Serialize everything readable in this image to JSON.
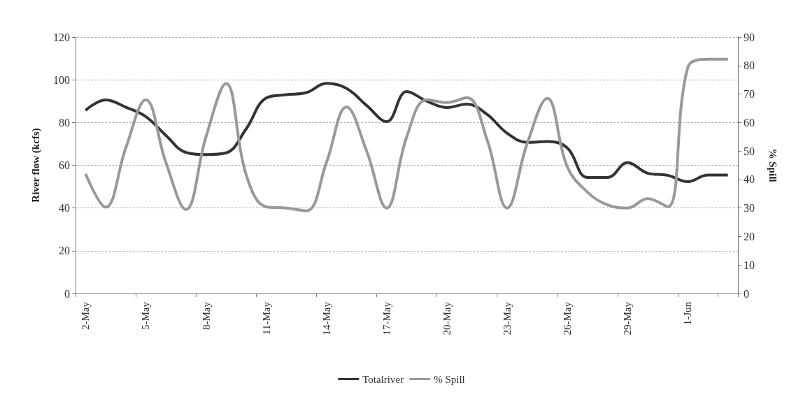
{
  "chart_data": {
    "type": "line",
    "ylabel": "River flow (kcfs)",
    "y2label": "% Spill",
    "categories": [
      "2-May",
      null,
      null,
      "5-May",
      null,
      null,
      "8-May",
      null,
      null,
      "11-May",
      null,
      null,
      "14-May",
      null,
      null,
      "17-May",
      null,
      null,
      "20-May",
      null,
      null,
      "23-May",
      null,
      null,
      "26-May",
      null,
      null,
      "29-May",
      null,
      null,
      "1-Jun",
      null,
      null
    ],
    "series": [
      {
        "name": "Totalriver",
        "color": "#333333",
        "values": [
          85.7,
          90.6,
          87.2,
          82.8,
          74,
          66,
          65,
          65.8,
          77,
          91.5,
          93,
          94,
          98.3,
          96,
          88,
          80.4,
          94.5,
          90,
          87,
          88.6,
          83.8,
          75,
          70.7,
          71.1,
          68.1,
          54.3,
          54.3,
          61.2,
          56.3,
          55.3,
          52.3,
          55.4,
          55.4
        ]
      },
      {
        "name": "% Spill",
        "color": "#999999",
        "axis": "y2",
        "values": [
          42,
          30.3,
          51,
          68,
          46,
          29.5,
          55,
          73.7,
          41.7,
          30.4,
          30,
          29,
          46,
          65.5,
          50,
          30,
          55,
          68,
          67,
          68.7,
          54,
          30,
          52.6,
          68.5,
          44.4,
          35.6,
          31.1,
          30,
          33.3,
          30.4,
          79.3,
          82.2,
          82.2
        ]
      }
    ],
    "ylim": [
      0,
      120
    ],
    "yticks": [
      0,
      20,
      40,
      60,
      80,
      100,
      120
    ],
    "y2lim": [
      0,
      90
    ],
    "y2ticks": [
      0,
      10,
      20,
      30,
      40,
      50,
      60,
      70,
      80,
      90
    ],
    "grid": "y",
    "legend": "bottom",
    "marker": "none",
    "line_style": "solid"
  }
}
